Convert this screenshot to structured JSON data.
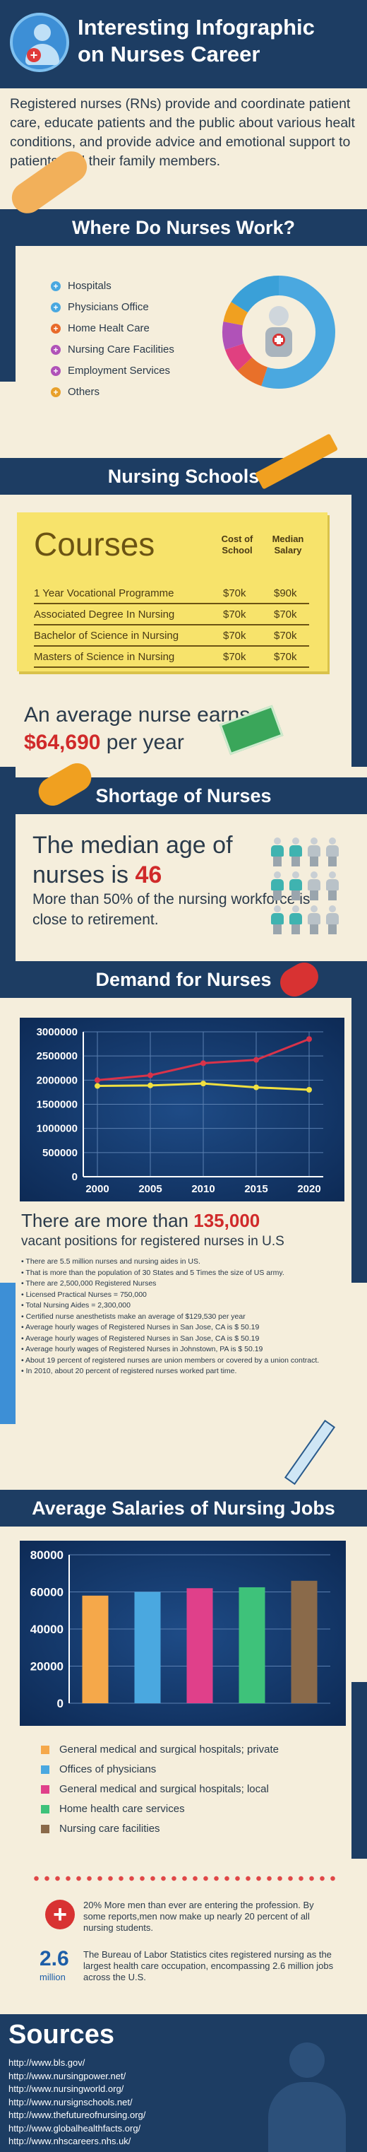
{
  "header": {
    "title_line1": "Interesting Infographic",
    "title_line2": "on Nurses Career"
  },
  "intro": "Registered nurses (RNs) provide and coordinate patient care, educate patients and the public about various healt conditions, and provide advice and emotional support to patients and their family members.",
  "where": {
    "title": "Where Do Nurses Work?",
    "items": [
      {
        "label": "Hospitals",
        "color": "#4aa8e0"
      },
      {
        "label": "Physicians Office",
        "color": "#4aa8e0"
      },
      {
        "label": "Home Healt Care",
        "color": "#e86a2a"
      },
      {
        "label": "Nursing Care Facilities",
        "color": "#b052b8"
      },
      {
        "label": "Employment Services",
        "color": "#b052b8"
      },
      {
        "label": "Others",
        "color": "#e8a02a"
      }
    ]
  },
  "schools": {
    "title": "Nursing Schools",
    "courses_title": "Courses",
    "col_cost": "Cost of School",
    "col_salary": "Median Salary",
    "rows": [
      {
        "name": "1 Year Vocational Programme",
        "cost": "$70k",
        "salary": "$90k"
      },
      {
        "name": "Associated Degree In Nursing",
        "cost": "$70k",
        "salary": "$70k"
      },
      {
        "name": "Bachelor of Science in Nursing",
        "cost": "$70k",
        "salary": "$70k"
      },
      {
        "name": "Masters of Science in Nursing",
        "cost": "$70k",
        "salary": "$70k"
      }
    ],
    "earn_line1": "An average nurse earns",
    "earn_amount": "$64,690",
    "earn_suffix": "per year"
  },
  "shortage": {
    "title": "Shortage of Nurses",
    "median_line1": "The median age of",
    "median_line2": "nurses is",
    "median_age": "46",
    "retire": "More than 50% of the nursing workforce is close to retirement."
  },
  "demand": {
    "title": "Demand for Nurses"
  },
  "vacant": {
    "line1_prefix": "There are more than",
    "line1_num": "135,000",
    "line2": "vacant positions for registered nurses in U.S",
    "facts": [
      "There are 5.5 million nurses and nursing aides in US.",
      "That is more than the population of 30 States and 5 Times the size of US army.",
      "There are 2,500,000 Registered Nurses",
      "Licensed Practical Nurses = 750,000",
      "Total Nursing Aides = 2,300,000",
      "Certified nurse anesthetists make an average of $129,530 per year",
      "Average hourly wages of Registered Nurses in San Jose, CA is $ 50.19",
      "Average hourly wages of Registered Nurses in San Jose, CA is $ 50.19",
      "Average hourly wages of Registered Nurses in Johnstown, PA is $ 50.19",
      "About 19 percent of registered nurses are union members or covered by a union contract.",
      "In 2010, about 20 percent of registered nurses worked part time."
    ]
  },
  "salaries": {
    "title": "Average Salaries of Nursing Jobs"
  },
  "footer_facts": {
    "men": "20% More men than ever are entering the profession. By some reports,men now make up nearly 20 percent of all nursing students.",
    "big_num": "2.6",
    "big_unit": "million",
    "bls": "The Bureau of Labor Statistics cites registered nursing as the largest health care occupation, encompassing 2.6 million jobs across the U.S."
  },
  "sources": {
    "title": "Sources",
    "links": [
      "http://www.bls.gov/",
      "http://www.nursingpower.net/",
      "http://www.nursingworld.org/",
      "http://www.nursignschools.net/",
      "http://www.thefutureofnursing.org/",
      "http://www.globalhealthfacts.org/",
      "http://www.nhscareers.nhs.uk/"
    ]
  },
  "chart_data": [
    {
      "type": "line",
      "x": [
        2000,
        2005,
        2010,
        2015,
        2020
      ],
      "series": [
        {
          "values": [
            2000000,
            2100000,
            2350000,
            2420000,
            2850000
          ],
          "color": "#d8334a"
        },
        {
          "values": [
            1880000,
            1890000,
            1930000,
            1850000,
            1800000
          ],
          "color": "#f0e040"
        }
      ],
      "ylim": [
        0,
        3000000
      ],
      "yticks": [
        0,
        500000,
        1000000,
        1500000,
        2000000,
        2500000,
        3000000
      ],
      "grid": true
    },
    {
      "type": "bar",
      "categories": [
        "General medical and surgical hospitals; private",
        "Offices of physicians",
        "General medical and surgical hospitals; local",
        "Home health care services",
        "Nursing care facilities"
      ],
      "values": [
        58000,
        60000,
        62000,
        62500,
        66000
      ],
      "colors": [
        "#f5a84a",
        "#4aa8e0",
        "#e0408a",
        "#3ec27a",
        "#8a6a4a"
      ],
      "ylim": [
        0,
        80000
      ],
      "yticks": [
        0,
        20000,
        40000,
        60000,
        80000
      ],
      "grid": true
    },
    {
      "type": "pie",
      "values": [
        55,
        8,
        7,
        8,
        6,
        16
      ],
      "colors": [
        "#4aa8e0",
        "#e8702a",
        "#e04080",
        "#b052b8",
        "#f0a020",
        "#3aa0d8"
      ]
    }
  ]
}
